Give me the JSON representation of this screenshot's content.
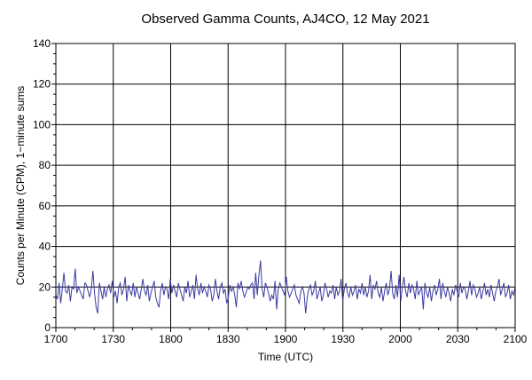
{
  "chart_data": {
    "type": "line",
    "title": "Observed Gamma Counts, AJ4CO, 12 May 2021",
    "xlabel": "Time (UTC)",
    "ylabel": "Counts per Minute (CPM), 1−minute sums",
    "x_range": [
      1700,
      2100
    ],
    "x_ticks": [
      "1700",
      "1730",
      "1800",
      "1830",
      "1900",
      "1930",
      "2000",
      "2030",
      "2100"
    ],
    "ylim": [
      0,
      140
    ],
    "y_ticks": [
      0,
      20,
      40,
      60,
      80,
      100,
      120,
      140
    ],
    "grid": true,
    "line_color": "#3a3aa0",
    "series": [
      {
        "values": [
          16,
          14,
          22,
          12,
          19,
          27,
          18,
          17,
          21,
          13,
          20,
          19,
          29,
          17,
          20,
          18,
          16,
          14,
          22,
          21,
          18,
          15,
          19,
          28,
          17,
          10,
          7,
          22,
          18,
          14,
          20,
          15,
          19,
          21,
          17,
          23,
          15,
          18,
          12,
          20,
          22,
          16,
          19,
          25,
          13,
          21,
          18,
          16,
          22,
          15,
          20,
          17,
          14,
          19,
          24,
          18,
          16,
          21,
          13,
          17,
          20,
          23,
          15,
          12,
          10,
          18,
          22,
          16,
          20,
          19,
          14,
          24,
          17,
          21,
          18,
          15,
          22,
          19,
          16,
          13,
          20,
          17,
          23,
          15,
          18,
          21,
          14,
          26,
          19,
          16,
          22,
          17,
          20,
          18,
          15,
          21,
          19,
          13,
          16,
          24,
          18,
          14,
          20,
          22,
          17,
          19,
          12,
          15,
          21,
          18,
          20,
          16,
          10,
          22,
          19,
          23,
          18,
          15,
          17,
          20,
          19,
          21,
          22,
          14,
          27,
          16,
          26,
          33,
          19,
          15,
          22,
          20,
          17,
          13,
          16,
          14,
          23,
          9,
          19,
          22,
          20,
          18,
          16,
          25,
          18,
          15,
          17,
          19,
          21,
          16,
          14,
          12,
          18,
          20,
          17,
          7,
          15,
          19,
          21,
          16,
          18,
          23,
          14,
          17,
          20,
          13,
          16,
          22,
          19,
          15,
          18,
          17,
          21,
          14,
          20,
          16,
          18,
          24,
          13,
          19,
          22,
          17,
          15,
          20,
          16,
          18,
          21,
          14,
          19,
          17,
          22,
          16,
          20,
          15,
          18,
          26,
          14,
          21,
          19,
          23,
          17,
          15,
          20,
          13,
          18,
          22,
          16,
          19,
          28,
          17,
          14,
          21,
          15,
          26,
          13,
          20,
          25,
          18,
          15,
          22,
          17,
          21,
          19,
          14,
          23,
          16,
          18,
          20,
          9,
          22,
          17,
          15,
          20,
          13,
          18,
          21,
          16,
          19,
          24,
          14,
          22,
          18,
          15,
          20,
          17,
          13,
          19,
          16,
          21,
          18,
          15,
          22,
          17,
          20,
          19,
          14,
          18,
          23,
          16,
          21,
          19,
          15,
          17,
          20,
          14,
          18,
          22,
          16,
          19,
          15,
          21,
          17,
          13,
          18,
          20,
          24,
          16,
          19,
          22,
          15,
          17,
          21,
          14,
          18,
          16,
          20
        ]
      }
    ]
  }
}
